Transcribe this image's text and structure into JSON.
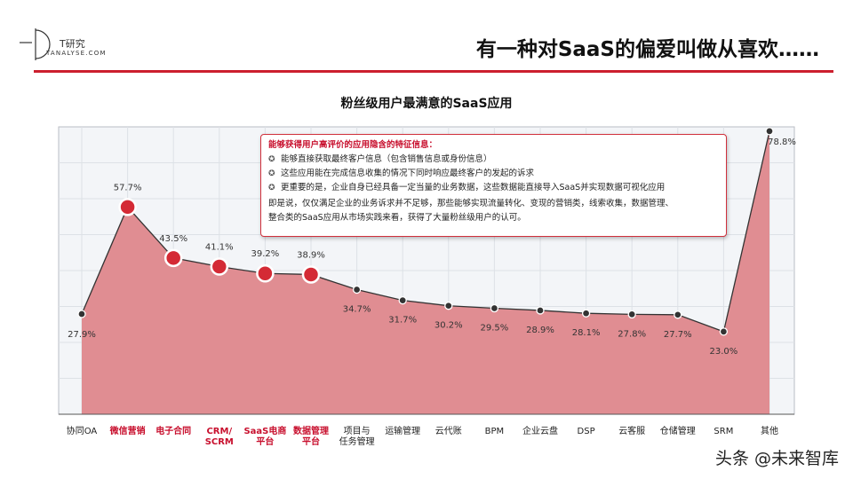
{
  "header": {
    "logo_cn": "T研究",
    "logo_en": "TANALYSE.COM",
    "page_title": "有一种对SaaS的偏爱叫做从喜欢……"
  },
  "callout": {
    "heading": "能够获得用户高评价的应用隐含的特征信息：",
    "items": [
      "能够直接获取最终客户信息（包含销售信息或身份信息）",
      "这些应用能在完成信息收集的情况下同时响应最终客户的发起的诉求",
      "更重要的是，企业自身已经具备一定当量的业务数据，这些数据能直接导入SaaS并实现数据可视化应用"
    ],
    "note_line1": "即是说，仅仅满足企业的业务诉求并不足够，那些能够实现流量转化、变现的营销类，线索收集，数据管理、",
    "note_line2": "整合类的SaaS应用从市场实践来看，获得了大量粉丝级用户的认可。"
  },
  "watermark": "头条 @未来智库",
  "colors": {
    "accent": "#cc1f2e",
    "area_fill": "#e08d92",
    "line": "#333333",
    "highlight_marker": "#d42a35"
  },
  "chart_data": {
    "type": "area",
    "title": "粉丝级用户最满意的SaaS应用",
    "categories": [
      "协同OA",
      "微信营销",
      "电子合同",
      "CRM/SCRM",
      "SaaS电商平台",
      "数据管理平台",
      "项目与任务管理",
      "运输管理",
      "云代账",
      "BPM",
      "企业云盘",
      "DSP",
      "云客服",
      "仓储管理",
      "SRM",
      "其他"
    ],
    "category_lines": [
      [
        "协同OA"
      ],
      [
        "微信营销"
      ],
      [
        "电子合同"
      ],
      [
        "CRM/",
        "SCRM"
      ],
      [
        "SaaS电商",
        "平台"
      ],
      [
        "数据管理",
        "平台"
      ],
      [
        "项目与",
        "任务管理"
      ],
      [
        "运输管理"
      ],
      [
        "云代账"
      ],
      [
        "BPM"
      ],
      [
        "企业云盘"
      ],
      [
        "DSP"
      ],
      [
        "云客服"
      ],
      [
        "仓储管理"
      ],
      [
        "SRM"
      ],
      [
        "其他"
      ]
    ],
    "highlighted": [
      false,
      true,
      true,
      true,
      true,
      true,
      false,
      false,
      false,
      false,
      false,
      false,
      false,
      false,
      false,
      false
    ],
    "values": [
      27.9,
      57.7,
      43.5,
      41.1,
      39.2,
      38.9,
      34.7,
      31.7,
      30.2,
      29.5,
      28.9,
      28.1,
      27.8,
      27.7,
      23.0,
      78.8
    ],
    "value_labels": [
      "27.9%",
      "57.7%",
      "43.5%",
      "41.1%",
      "39.2%",
      "38.9%",
      "34.7%",
      "31.7%",
      "30.2%",
      "29.5%",
      "28.9%",
      "28.1%",
      "27.8%",
      "27.7%",
      "23.0%",
      "78.8%"
    ],
    "ylim": [
      0,
      80
    ],
    "grid": true,
    "legend": "none"
  }
}
